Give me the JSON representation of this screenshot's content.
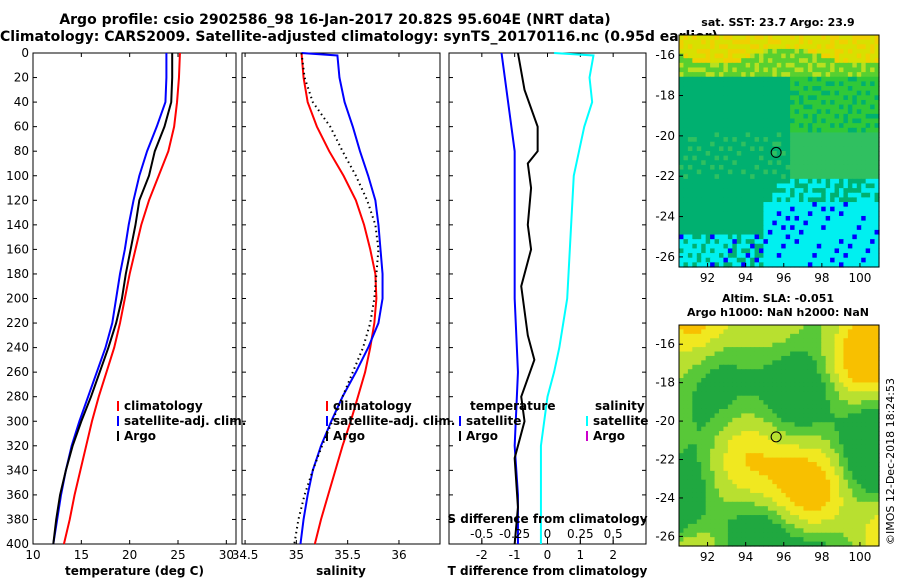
{
  "header": {
    "title_line1": "Argo profile: csio 2902586_98 16-Jan-2017 20.82S 95.604E (NRT data)",
    "title_line2": "Climatology: CARS2009. Satellite-adjusted climatology: synTS_20170116.nc (0.95d earlier)"
  },
  "maps": {
    "sst_title": "sat. SST: 23.7 Argo: 23.9",
    "alt_title_line1": "Altim. SLA: -0.051",
    "alt_title_line2": "Argo h1000: NaN h2000: NaN",
    "lat_ticks": [
      "-16",
      "-18",
      "-20",
      "-22",
      "-24",
      "-26"
    ],
    "lon_ticks": [
      "92",
      "94",
      "96",
      "98",
      "100"
    ]
  },
  "copyright": "©IMOS 12-Dec-2018 18:24:53",
  "chart_data": [
    {
      "type": "line",
      "id": "temperature",
      "xlabel": "temperature (deg C)",
      "ylabel": "depth",
      "xlim": [
        10,
        31
      ],
      "ylim": [
        400,
        0
      ],
      "xticks": [
        "10",
        "15",
        "20",
        "25",
        "30"
      ],
      "yticks": [
        "0",
        "20",
        "40",
        "60",
        "80",
        "100",
        "120",
        "140",
        "160",
        "180",
        "200",
        "220",
        "240",
        "260",
        "280",
        "300",
        "320",
        "340",
        "360",
        "380",
        "400"
      ],
      "legend": [
        "climatology",
        "satellite-adj. clim.",
        "Argo"
      ],
      "series": [
        {
          "name": "climatology",
          "color": "#ff0000",
          "points": [
            [
              25.2,
              0
            ],
            [
              25.1,
              20
            ],
            [
              24.9,
              40
            ],
            [
              24.6,
              60
            ],
            [
              24.0,
              80
            ],
            [
              23.0,
              100
            ],
            [
              22.0,
              120
            ],
            [
              21.2,
              140
            ],
            [
              20.6,
              160
            ],
            [
              20.0,
              180
            ],
            [
              19.5,
              200
            ],
            [
              19.0,
              220
            ],
            [
              18.4,
              240
            ],
            [
              17.6,
              260
            ],
            [
              16.8,
              280
            ],
            [
              16.1,
              300
            ],
            [
              15.5,
              320
            ],
            [
              14.9,
              340
            ],
            [
              14.3,
              360
            ],
            [
              13.8,
              380
            ],
            [
              13.2,
              400
            ]
          ]
        },
        {
          "name": "satellite-adj. clim.",
          "color": "#0000ff",
          "points": [
            [
              23.8,
              0
            ],
            [
              23.8,
              20
            ],
            [
              23.7,
              40
            ],
            [
              22.8,
              60
            ],
            [
              21.8,
              80
            ],
            [
              21.0,
              100
            ],
            [
              20.4,
              120
            ],
            [
              19.9,
              140
            ],
            [
              19.5,
              160
            ],
            [
              19.0,
              180
            ],
            [
              18.6,
              200
            ],
            [
              18.2,
              220
            ],
            [
              17.5,
              240
            ],
            [
              16.6,
              260
            ],
            [
              15.7,
              280
            ],
            [
              14.8,
              300
            ],
            [
              14.0,
              320
            ],
            [
              13.4,
              340
            ],
            [
              12.9,
              360
            ],
            [
              12.5,
              380
            ],
            [
              12.1,
              400
            ]
          ]
        },
        {
          "name": "Argo",
          "color": "#000000",
          "points": [
            [
              24.4,
              0
            ],
            [
              24.4,
              20
            ],
            [
              24.3,
              40
            ],
            [
              23.6,
              60
            ],
            [
              22.6,
              80
            ],
            [
              22.0,
              100
            ],
            [
              21.0,
              120
            ],
            [
              20.6,
              140
            ],
            [
              20.1,
              160
            ],
            [
              19.6,
              180
            ],
            [
              19.2,
              200
            ],
            [
              18.6,
              220
            ],
            [
              17.8,
              240
            ],
            [
              16.9,
              260
            ],
            [
              16.0,
              280
            ],
            [
              15.0,
              300
            ],
            [
              14.1,
              320
            ],
            [
              13.4,
              340
            ],
            [
              12.8,
              360
            ],
            [
              12.4,
              380
            ],
            [
              12.1,
              400
            ]
          ]
        }
      ]
    },
    {
      "type": "line",
      "id": "salinity",
      "xlabel": "salinity",
      "ylabel": "depth",
      "xlim": [
        34.47,
        36.4
      ],
      "ylim": [
        400,
        0
      ],
      "xticks": [
        "34.5",
        "35",
        "35.5",
        "36"
      ],
      "legend": [
        "climatology",
        "satellite-adj. clim.",
        "Argo"
      ],
      "series": [
        {
          "name": "climatology",
          "color": "#ff0000",
          "points": [
            [
              35.05,
              0
            ],
            [
              35.07,
              20
            ],
            [
              35.11,
              40
            ],
            [
              35.2,
              60
            ],
            [
              35.32,
              80
            ],
            [
              35.46,
              100
            ],
            [
              35.58,
              120
            ],
            [
              35.66,
              140
            ],
            [
              35.72,
              160
            ],
            [
              35.77,
              180
            ],
            [
              35.78,
              200
            ],
            [
              35.76,
              220
            ],
            [
              35.72,
              240
            ],
            [
              35.67,
              260
            ],
            [
              35.6,
              280
            ],
            [
              35.53,
              300
            ],
            [
              35.45,
              320
            ],
            [
              35.38,
              340
            ],
            [
              35.31,
              360
            ],
            [
              35.24,
              380
            ],
            [
              35.18,
              400
            ]
          ]
        },
        {
          "name": "satellite-adj. clim.",
          "color": "#0000ff",
          "points": [
            [
              35.05,
              0
            ],
            [
              35.4,
              2
            ],
            [
              35.42,
              20
            ],
            [
              35.47,
              40
            ],
            [
              35.55,
              60
            ],
            [
              35.62,
              80
            ],
            [
              35.7,
              100
            ],
            [
              35.77,
              120
            ],
            [
              35.8,
              140
            ],
            [
              35.82,
              160
            ],
            [
              35.84,
              180
            ],
            [
              35.84,
              200
            ],
            [
              35.8,
              220
            ],
            [
              35.7,
              240
            ],
            [
              35.58,
              260
            ],
            [
              35.45,
              280
            ],
            [
              35.34,
              300
            ],
            [
              35.24,
              320
            ],
            [
              35.16,
              340
            ],
            [
              35.11,
              360
            ],
            [
              35.07,
              380
            ],
            [
              35.04,
              400
            ]
          ]
        },
        {
          "name": "Argo",
          "color": "#000000",
          "dotted": true,
          "points": [
            [
              35.05,
              0
            ],
            [
              35.08,
              20
            ],
            [
              35.16,
              40
            ],
            [
              35.33,
              60
            ],
            [
              35.45,
              80
            ],
            [
              35.58,
              100
            ],
            [
              35.69,
              120
            ],
            [
              35.77,
              140
            ],
            [
              35.8,
              160
            ],
            [
              35.78,
              180
            ],
            [
              35.76,
              200
            ],
            [
              35.72,
              220
            ],
            [
              35.65,
              240
            ],
            [
              35.55,
              260
            ],
            [
              35.45,
              280
            ],
            [
              35.35,
              300
            ],
            [
              35.25,
              320
            ],
            [
              35.16,
              340
            ],
            [
              35.08,
              360
            ],
            [
              35.02,
              380
            ],
            [
              34.98,
              400
            ]
          ]
        }
      ]
    },
    {
      "type": "line",
      "id": "difference",
      "xlabel": "T difference from climatology",
      "xlabel_top": "S difference from climatology",
      "xlim": [
        -3,
        3
      ],
      "ylim": [
        400,
        0
      ],
      "xticks": [
        "-2",
        "-1",
        "0",
        "1",
        "2"
      ],
      "sticks": [
        "-0.5",
        "-0.25",
        "0",
        "0.25",
        "0.5"
      ],
      "legend_temperature": {
        "heading": "temperature",
        "items": [
          "satellite",
          "Argo"
        ]
      },
      "legend_salinity": {
        "heading": "salinity",
        "items": [
          "satellite",
          "Argo"
        ]
      },
      "series": [
        {
          "name": "temperature satellite",
          "color": "#0000ff",
          "points": [
            [
              -1.4,
              0
            ],
            [
              -1.3,
              20
            ],
            [
              -1.2,
              40
            ],
            [
              -1.0,
              80
            ],
            [
              -1.0,
              120
            ],
            [
              -1.0,
              200
            ],
            [
              -0.9,
              260
            ],
            [
              -1.0,
              320
            ],
            [
              -0.9,
              360
            ],
            [
              -0.9,
              400
            ]
          ]
        },
        {
          "name": "temperature Argo",
          "color": "#000000",
          "points": [
            [
              -0.9,
              0
            ],
            [
              -0.7,
              30
            ],
            [
              -0.3,
              60
            ],
            [
              -0.3,
              80
            ],
            [
              -0.6,
              90
            ],
            [
              -0.5,
              110
            ],
            [
              -0.6,
              140
            ],
            [
              -0.5,
              160
            ],
            [
              -0.8,
              190
            ],
            [
              -0.6,
              230
            ],
            [
              -0.4,
              250
            ],
            [
              -0.8,
              280
            ],
            [
              -0.7,
              300
            ],
            [
              -1.0,
              330
            ],
            [
              -0.9,
              370
            ],
            [
              -1.0,
              400
            ]
          ]
        },
        {
          "name": "salinity satellite",
          "color": "#00ffff",
          "points": [
            [
              0.05,
              0
            ],
            [
              0.35,
              2
            ],
            [
              0.32,
              20
            ],
            [
              0.34,
              40
            ],
            [
              0.28,
              60
            ],
            [
              0.24,
              80
            ],
            [
              0.2,
              100
            ],
            [
              0.19,
              120
            ],
            [
              0.17,
              160
            ],
            [
              0.15,
              200
            ],
            [
              0.12,
              220
            ],
            [
              0.09,
              240
            ],
            [
              0.05,
              260
            ],
            [
              0.0,
              280
            ],
            [
              -0.05,
              320
            ],
            [
              -0.05,
              400
            ]
          ]
        },
        {
          "name": "salinity Argo",
          "color": "#cc00cc",
          "points": []
        }
      ]
    }
  ]
}
